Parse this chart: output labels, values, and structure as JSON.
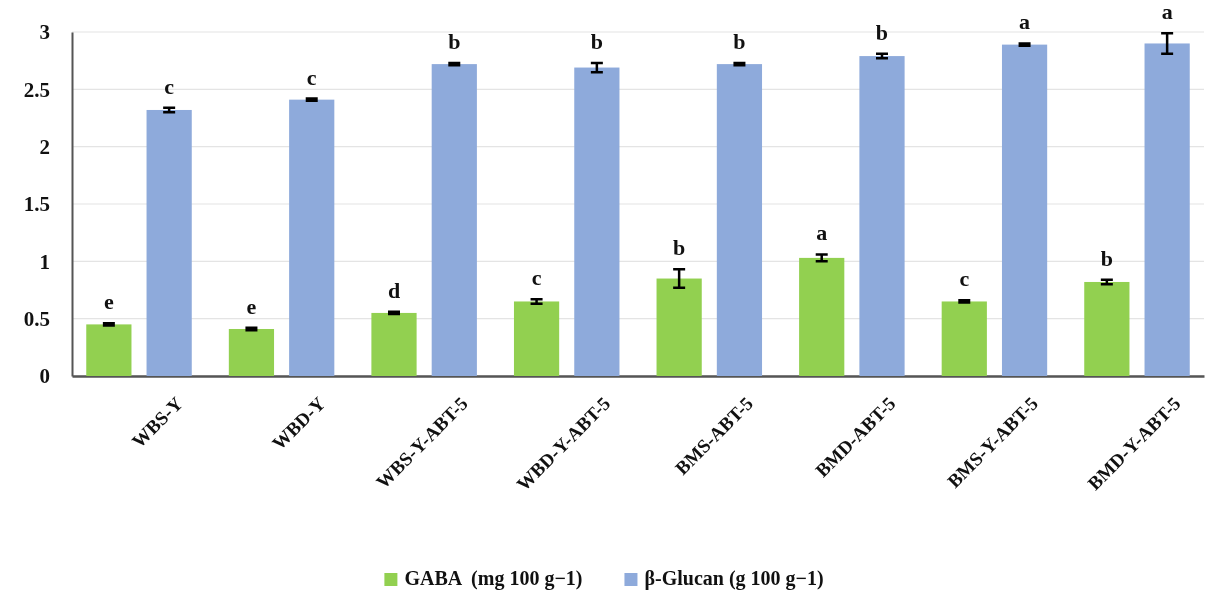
{
  "chart_data": {
    "type": "bar",
    "categories": [
      "WBS-Y",
      "WBD-Y",
      "WBS-Y-ABT-5",
      "WBD-Y-ABT-5",
      "BMS-ABT-5",
      "BMD-ABT-5",
      "BMS-Y-ABT-5",
      "BMD-Y-ABT-5"
    ],
    "series": [
      {
        "name": "GABA  (mg 100 g−1)",
        "color": "#92d050",
        "values": [
          0.45,
          0.41,
          0.55,
          0.65,
          0.85,
          1.03,
          0.65,
          0.82
        ],
        "errors": [
          0.01,
          0.01,
          0.01,
          0.02,
          0.08,
          0.03,
          0.01,
          0.02
        ],
        "value_labels": [
          "e",
          "e",
          "d",
          "c",
          "b",
          "a",
          "c",
          "b"
        ]
      },
      {
        "name": "β-Glucan (g 100 g−1)",
        "color": "#8eaadb",
        "values": [
          2.32,
          2.41,
          2.72,
          2.69,
          2.72,
          2.79,
          2.89,
          2.9
        ],
        "errors": [
          0.02,
          0.01,
          0.01,
          0.04,
          0.01,
          0.02,
          0.01,
          0.09
        ],
        "value_labels": [
          "c",
          "c",
          "b",
          "b",
          "b",
          "b",
          "a",
          "a"
        ]
      }
    ],
    "ylim": [
      0,
      3
    ],
    "yticks": [
      0,
      0.5,
      1,
      1.5,
      2,
      2.5,
      3
    ],
    "grid": "y",
    "legend": "bottom"
  }
}
